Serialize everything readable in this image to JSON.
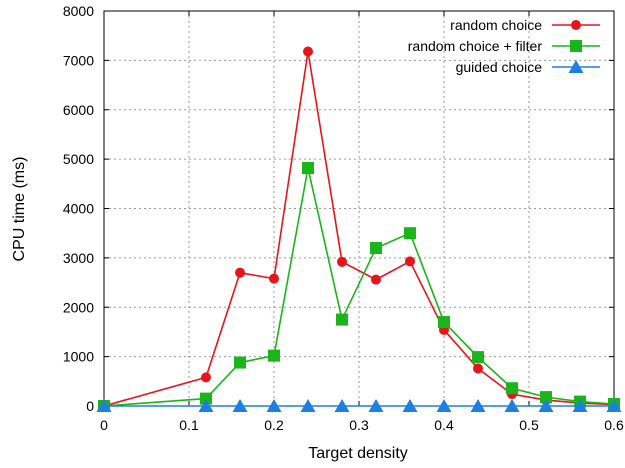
{
  "chart_data": {
    "type": "line",
    "xlabel": "Target density",
    "ylabel": "CPU time (ms)",
    "xlim": [
      0,
      0.6
    ],
    "ylim": [
      0,
      8000
    ],
    "x_ticks": [
      "0",
      "0.1",
      "0.2",
      "0.3",
      "0.4",
      "0.5",
      "0.6"
    ],
    "y_ticks": [
      "0",
      "1000",
      "2000",
      "3000",
      "4000",
      "5000",
      "6000",
      "7000",
      "8000"
    ],
    "grid": true,
    "legend_position": "top-right",
    "series": [
      {
        "name": "random choice",
        "color": "#e8141b",
        "marker": "circle",
        "x": [
          0,
          0.12,
          0.16,
          0.2,
          0.24,
          0.28,
          0.32,
          0.36,
          0.4,
          0.44,
          0.48,
          0.52,
          0.56,
          0.6
        ],
        "values": [
          0,
          580,
          2700,
          2580,
          7180,
          2920,
          2560,
          2930,
          1540,
          760,
          240,
          120,
          60,
          30
        ]
      },
      {
        "name": "random choice + filter",
        "color": "#19b51b",
        "marker": "square",
        "x": [
          0,
          0.12,
          0.16,
          0.2,
          0.24,
          0.28,
          0.32,
          0.36,
          0.4,
          0.44,
          0.48,
          0.52,
          0.56,
          0.6
        ],
        "values": [
          0,
          150,
          880,
          1020,
          4820,
          1750,
          3200,
          3500,
          1700,
          990,
          360,
          180,
          90,
          40
        ]
      },
      {
        "name": "guided choice",
        "color": "#1f7fe0",
        "marker": "triangle",
        "x": [
          0,
          0.12,
          0.16,
          0.2,
          0.24,
          0.28,
          0.32,
          0.36,
          0.4,
          0.44,
          0.48,
          0.52,
          0.56,
          0.6
        ],
        "values": [
          0,
          0,
          0,
          0,
          0,
          0,
          0,
          0,
          0,
          0,
          0,
          0,
          0,
          0
        ]
      }
    ]
  }
}
